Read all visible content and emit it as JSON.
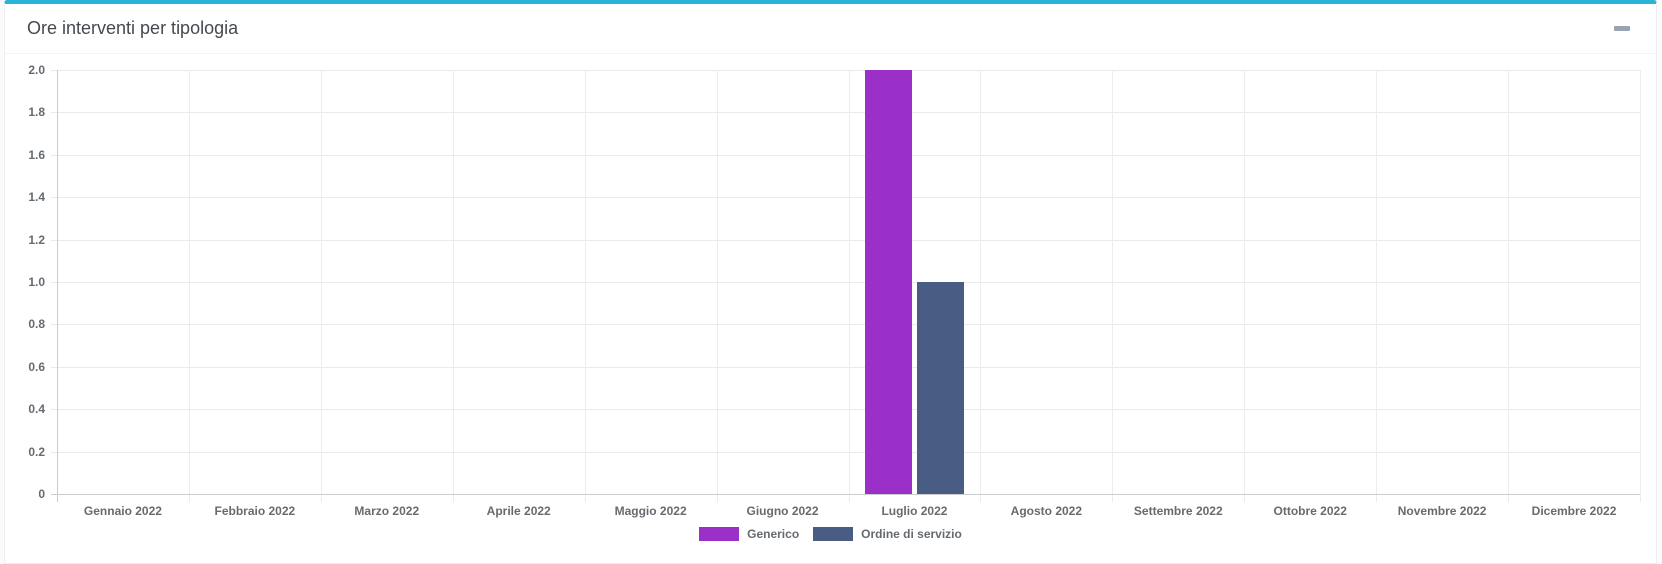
{
  "panel": {
    "title": "Ore interventi per tipologia",
    "accent_color": "#2ab5d8",
    "collapse_icon": "minus-icon"
  },
  "chart_data": {
    "type": "bar",
    "title": "Ore interventi per tipologia",
    "categories": [
      "Gennaio 2022",
      "Febbraio 2022",
      "Marzo 2022",
      "Aprile 2022",
      "Maggio 2022",
      "Giugno 2022",
      "Luglio 2022",
      "Agosto 2022",
      "Settembre 2022",
      "Ottobre 2022",
      "Novembre 2022",
      "Dicembre 2022"
    ],
    "series": [
      {
        "name": "Generico",
        "color": "#9b30c9",
        "values": [
          0,
          0,
          0,
          0,
          0,
          0,
          2,
          0,
          0,
          0,
          0,
          0
        ]
      },
      {
        "name": "Ordine di servizio",
        "color": "#495c84",
        "values": [
          0,
          0,
          0,
          0,
          0,
          0,
          1,
          0,
          0,
          0,
          0,
          0
        ]
      }
    ],
    "ylim": [
      0,
      2
    ],
    "ytick_labels": [
      "0",
      "0.2",
      "0.4",
      "0.6",
      "0.8",
      "1.0",
      "1.2",
      "1.4",
      "1.6",
      "1.8",
      "2.0"
    ],
    "grid": true,
    "legend_position": "bottom"
  }
}
